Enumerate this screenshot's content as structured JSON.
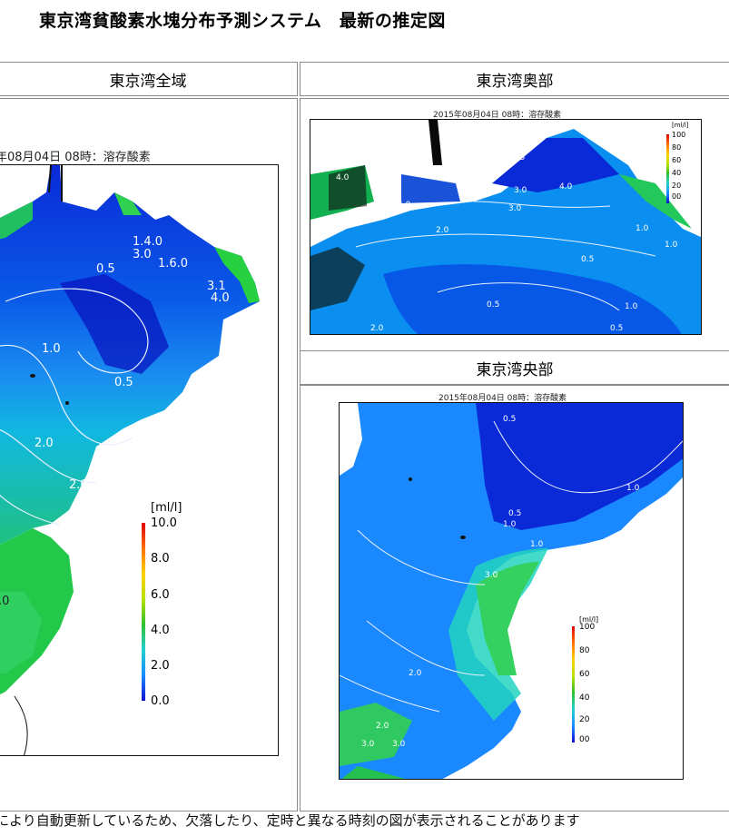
{
  "page": {
    "title": "東京湾貧酸素水塊分布予測システム　最新の推定図",
    "footer_note": "により自動更新しているため、欠落したり、定時と異なる時刻の図が表示されることがあります"
  },
  "panels": {
    "whole": {
      "header": "東京湾全域",
      "caption": "年08月04日 08時：溶存酸素",
      "contour_labels": [
        "1.4.0",
        "3.0",
        "0.5",
        "1.6.0",
        "3.1",
        "4.0",
        "1.0",
        "0.5",
        "2.0",
        "2.0",
        ".0"
      ]
    },
    "inner": {
      "header": "東京湾奥部",
      "caption": "2015年08月04日 08時：溶存酸素",
      "contour_labels": [
        "0.5",
        "4.0",
        "3.0",
        "3.0",
        "2.0",
        "4.0",
        "4.0",
        "1.0",
        "2.0",
        "0.5",
        "0.5",
        "1.0",
        "1.0",
        "0.5"
      ]
    },
    "central": {
      "header": "東京湾央部",
      "caption": "2015年08月04日 08時：溶存酸素",
      "contour_labels": [
        "0.5",
        "1.0",
        "0.5",
        "1.0",
        "1.0",
        "3.0",
        "2.0",
        "2.0",
        "3.0",
        "3.0"
      ]
    }
  },
  "legend": {
    "unit": "[ml/l]",
    "ticks": [
      "10.0",
      "8.0",
      "6.0",
      "4.0",
      "2.0",
      "0.0"
    ],
    "ticks_small": [
      "100",
      "80",
      "60",
      "40",
      "20",
      "00"
    ],
    "colors": [
      "#1010d0",
      "#1a8cff",
      "#22d0d0",
      "#30c030",
      "#b8e000",
      "#ffd000",
      "#ff7000",
      "#e00000"
    ]
  }
}
